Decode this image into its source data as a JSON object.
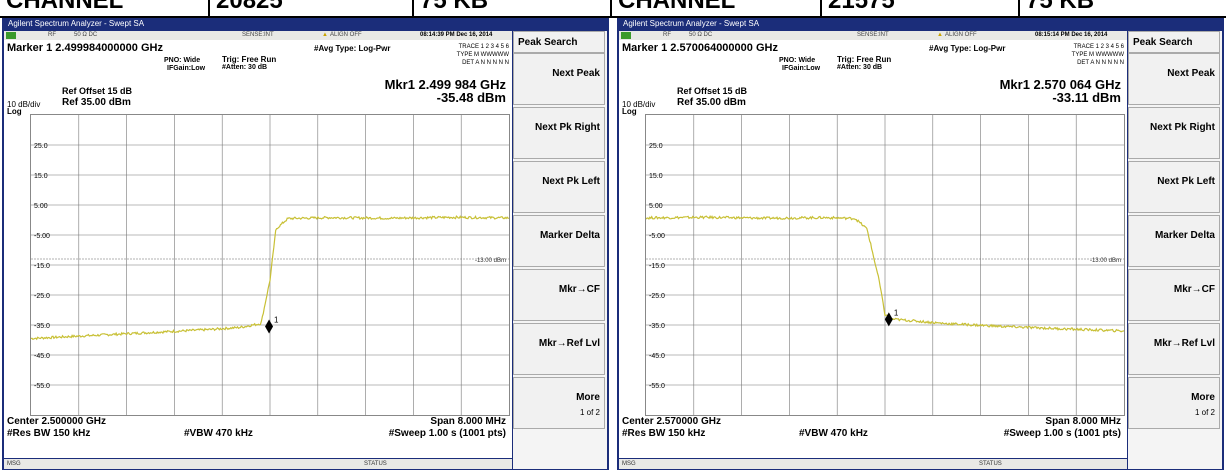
{
  "header_row": [
    "CHANNEL",
    "20825",
    "75 KB",
    "CHANNEL",
    "21575",
    "75 KB"
  ],
  "panels": [
    {
      "title": "Agilent Spectrum Analyzer - Swept SA",
      "status": {
        "rf": "RF",
        "ohm": "50 Ω  DC",
        "sense": "SENSE:INT",
        "align": "ALIGN OFF",
        "time": "08:14:39 PM Dec 16, 2014"
      },
      "marker_title": "Marker 1  2.499984000000 GHz",
      "pno": "PNO: Wide",
      "ifgain": "IFGain:Low",
      "trig": "Trig: Free Run",
      "atten": "#Atten: 30 dB",
      "avg": "#Avg Type: Log-Pwr",
      "trace_line1": "TRACE  1 2 3 4 5 6",
      "trace_line2": "TYPE  M WWWWW",
      "trace_line3": "DET  A N N N N N",
      "mkr_label": "Mkr1 2.499 984 GHz",
      "mkr_value": "-35.48 dBm",
      "ref_offset": "Ref Offset 15 dB",
      "divs": "10 dB/div",
      "ref": "Ref 35.00 dBm",
      "log": "Log",
      "y_ticks": [
        "25.0",
        "15.0",
        "5.00",
        "-5.00",
        "-15.0",
        "-25.0",
        "-35.0",
        "-45.0",
        "-55.0"
      ],
      "limit_label": "-13.00 dBm",
      "marker_num": "1",
      "center": "Center 2.500000 GHz",
      "rbw": "#Res BW 150 kHz",
      "vbw": "#VBW 470 kHz",
      "span": "Span 8.000 MHz",
      "sweep": "#Sweep  1.00 s (1001 pts)",
      "msg": "MSG",
      "statuslbl": "STATUS",
      "softkeys": [
        "Peak Search",
        "Next Peak",
        "Next Pk Right",
        "Next Pk Left",
        "Marker Delta",
        "Mkr→CF",
        "Mkr→Ref Lvl",
        "More"
      ],
      "more_sub": "1 of 2",
      "chart_data": {
        "type": "line",
        "x_range_mhz": [
          -4,
          4
        ],
        "ylim": [
          -65,
          35
        ],
        "limit_line": -13,
        "series": [
          {
            "x": [
              -4,
              -3,
              -2,
              -1,
              -0.5,
              -0.15,
              0.0,
              0.1,
              0.3,
              1,
              2,
              3,
              4
            ],
            "y": [
              -39.5,
              -38.5,
              -37.5,
              -36.5,
              -35.8,
              -34.5,
              -20,
              -3,
              0.5,
              0.8,
              0.6,
              0.9,
              0.7
            ]
          }
        ],
        "marker": {
          "x": -0.016,
          "y": -35.48
        }
      }
    },
    {
      "title": "Agilent Spectrum Analyzer - Swept SA",
      "status": {
        "rf": "RF",
        "ohm": "50 Ω  DC",
        "sense": "SENSE:INT",
        "align": "ALIGN OFF",
        "time": "08:15:14 PM Dec 16, 2014"
      },
      "marker_title": "Marker 1  2.570064000000 GHz",
      "pno": "PNO: Wide",
      "ifgain": "IFGain:Low",
      "trig": "Trig: Free Run",
      "atten": "#Atten: 30 dB",
      "avg": "#Avg Type: Log-Pwr",
      "trace_line1": "TRACE  1 2 3 4 5 6",
      "trace_line2": "TYPE  M WWWWW",
      "trace_line3": "DET  A N N N N N",
      "mkr_label": "Mkr1 2.570 064 GHz",
      "mkr_value": "-33.11 dBm",
      "ref_offset": "Ref Offset 15 dB",
      "divs": "10 dB/div",
      "ref": "Ref 35.00 dBm",
      "log": "Log",
      "y_ticks": [
        "25.0",
        "15.0",
        "5.00",
        "-5.00",
        "-15.0",
        "-25.0",
        "-35.0",
        "-45.0",
        "-55.0"
      ],
      "limit_label": "-13.00 dBm",
      "marker_num": "1",
      "center": "Center 2.570000 GHz",
      "rbw": "#Res BW 150 kHz",
      "vbw": "#VBW 470 kHz",
      "span": "Span 8.000 MHz",
      "sweep": "#Sweep  1.00 s (1001 pts)",
      "msg": "MSG",
      "statuslbl": "STATUS",
      "softkeys": [
        "Peak Search",
        "Next Peak",
        "Next Pk Right",
        "Next Pk Left",
        "Marker Delta",
        "Mkr→CF",
        "Mkr→Ref Lvl",
        "More"
      ],
      "more_sub": "1 of 2",
      "chart_data": {
        "type": "line",
        "x_range_mhz": [
          -4,
          4
        ],
        "ylim": [
          -65,
          35
        ],
        "limit_line": -13,
        "series": [
          {
            "x": [
              -4,
              -3,
              -2,
              -1,
              -0.5,
              -0.3,
              -0.1,
              0.0,
              0.1,
              1,
              2,
              3,
              4
            ],
            "y": [
              0.7,
              0.9,
              0.6,
              0.8,
              0.5,
              -3,
              -20,
              -31.5,
              -33,
              -34.5,
              -35.5,
              -36.3,
              -37
            ]
          }
        ],
        "marker": {
          "x": 0.064,
          "y": -33.11
        }
      }
    }
  ]
}
